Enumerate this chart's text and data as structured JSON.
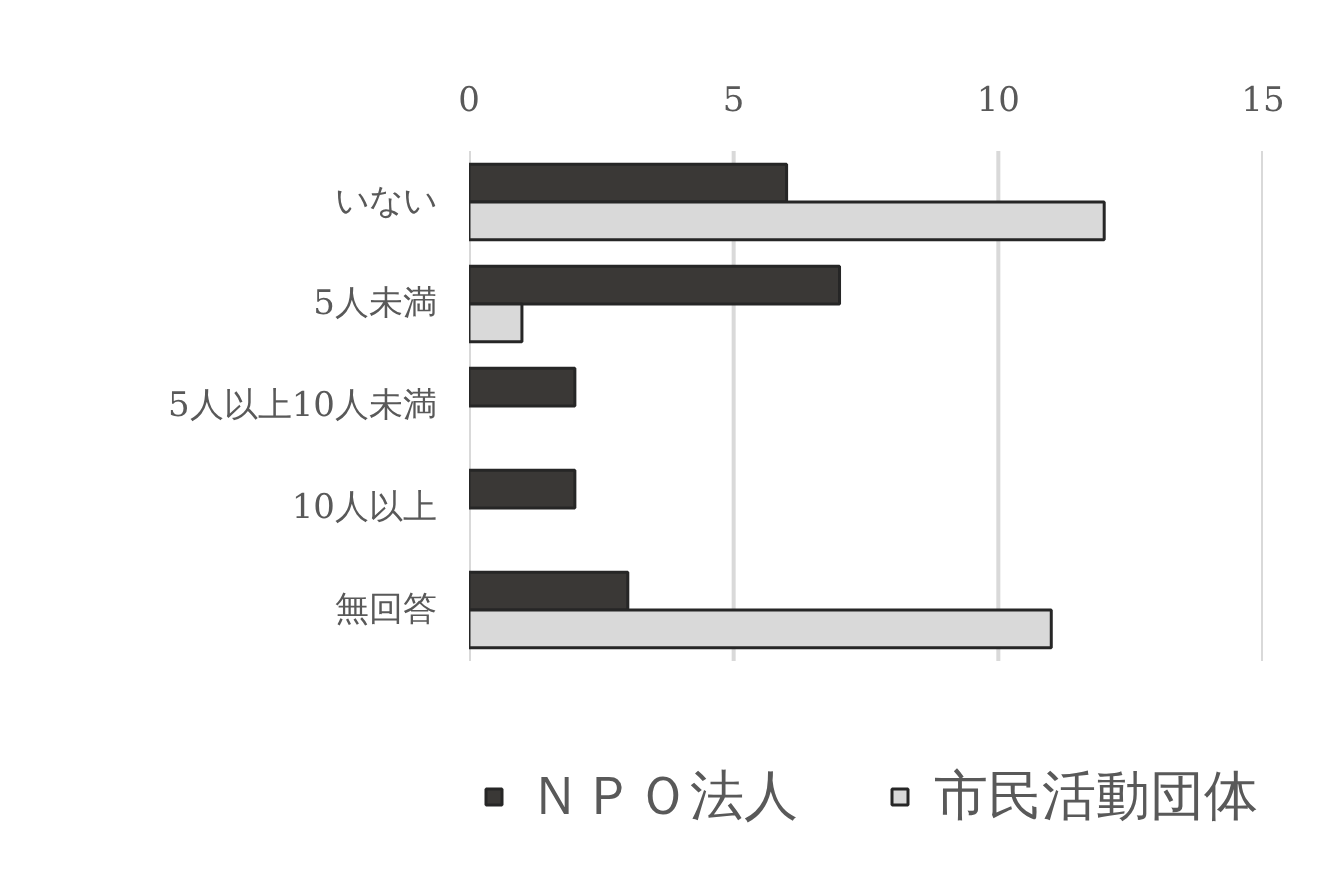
{
  "chart_data": {
    "type": "bar",
    "orientation": "horizontal",
    "categories": [
      "いない",
      "5人未満",
      "5人以上10人未満",
      "10人以上",
      "無回答"
    ],
    "series": [
      {
        "name": "ＮＰＯ法人",
        "color": "#3a3836",
        "values": [
          6,
          7,
          2,
          2,
          3
        ]
      },
      {
        "name": "市民活動団体",
        "color": "#d9d9d9",
        "values": [
          12,
          1,
          0,
          0,
          11
        ]
      }
    ],
    "xlim": [
      0,
      15
    ],
    "xticks": [
      0,
      5,
      10,
      15
    ],
    "grid": "x",
    "legend": "bottom"
  }
}
